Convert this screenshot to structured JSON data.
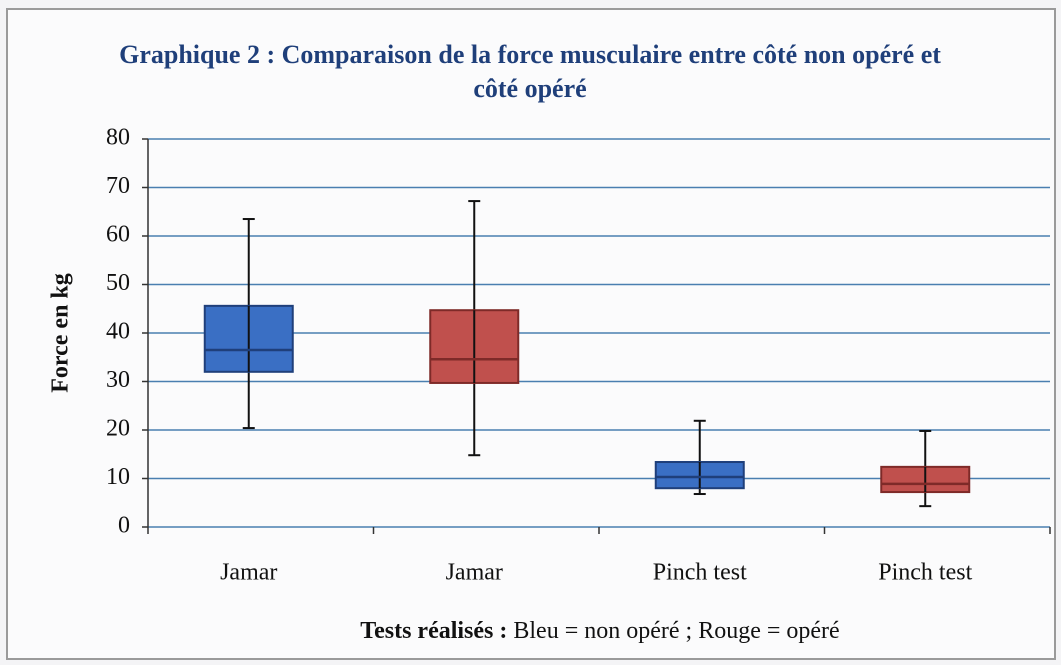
{
  "chart_data": {
    "type": "box",
    "title": "Graphique 2 : Comparaison de la force musculaire entre côté non opéré et côté opéré",
    "ylabel": "Force en kg",
    "xlabel": [
      "Tests réalisés :",
      "Bleu  = non opéré ; Rouge = opéré"
    ],
    "categories": [
      "Jamar",
      "Jamar",
      "Pinch test",
      "Pinch test"
    ],
    "boxes": [
      {
        "min": 20.4,
        "q1": 32,
        "median": 36.5,
        "q3": 45.6,
        "max": 63.5,
        "color": "#3a6fc4"
      },
      {
        "min": 14.8,
        "q1": 29.7,
        "median": 34.6,
        "q3": 44.7,
        "max": 67.2,
        "color": "#c0504d"
      },
      {
        "min": 6.8,
        "q1": 8,
        "median": 10.3,
        "q3": 13.4,
        "max": 21.9,
        "color": "#3a6fc4"
      },
      {
        "min": 4.3,
        "q1": 7.2,
        "median": 8.9,
        "q3": 12.4,
        "max": 19.8,
        "color": "#c0504d"
      }
    ],
    "ylim": [
      0,
      80
    ],
    "yticks": [
      0,
      10,
      20,
      30,
      40,
      50,
      60,
      70,
      80
    ],
    "grid": true
  }
}
